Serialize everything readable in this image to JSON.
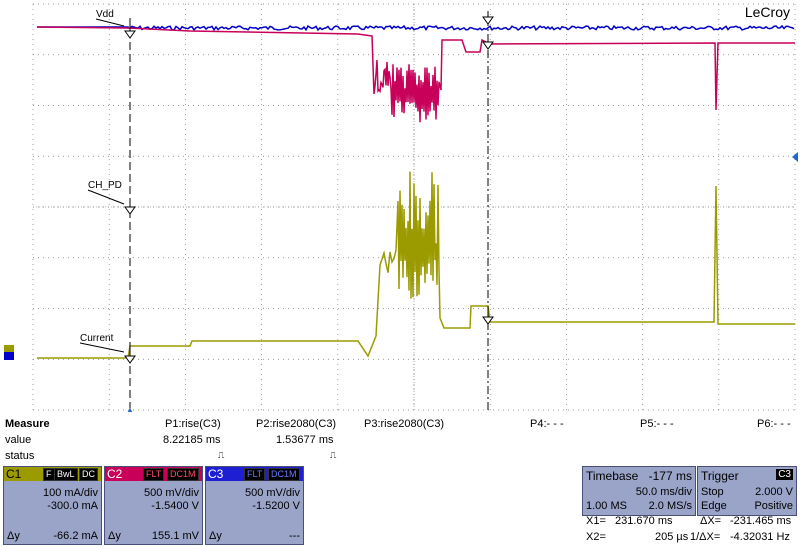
{
  "brand": "LeCroy",
  "traces": {
    "labels": {
      "vdd": "Vdd",
      "ch_pd": "CH_PD",
      "current": "Current"
    },
    "colors": {
      "c1": "#9b9b00",
      "c2": "#c8005a",
      "c3": "#0000c8",
      "grid": "#7a7a7a"
    }
  },
  "measure": {
    "title": "Measure",
    "row_value": "value",
    "row_status": "status",
    "params": [
      {
        "name": "P1:rise(C3)",
        "value": "8.22185 ms",
        "status": "⎍"
      },
      {
        "name": "P2:rise2080(C3)",
        "value": "1.53677 ms",
        "status": "⎍"
      },
      {
        "name": "P3:rise2080(C3)",
        "value": "",
        "status": ""
      },
      {
        "name": "P4:- - -",
        "value": "",
        "status": ""
      },
      {
        "name": "P5:- - -",
        "value": "",
        "status": ""
      },
      {
        "name": "P6:- - -",
        "value": "",
        "status": ""
      }
    ]
  },
  "channels": [
    {
      "id": "C1",
      "tags": [
        "F",
        "BwL",
        "DC"
      ],
      "scale": "100 mA/div",
      "offset": "-300.0 mA",
      "dy_label": "Δy",
      "dy": "-66.2 mA",
      "color": "#9b9b00"
    },
    {
      "id": "C2",
      "tags": [
        "FLT",
        "DC1M"
      ],
      "scale": "500 mV/div",
      "offset": "-1.5400 V",
      "dy_label": "Δy",
      "dy": "155.1 mV",
      "color": "#c8005a"
    },
    {
      "id": "C3",
      "tags": [
        "FLT",
        "DC1M"
      ],
      "scale": "500 mV/div",
      "offset": "-1.5200 V",
      "dy_label": "Δy",
      "dy": "---",
      "color": "#1e1ed2"
    }
  ],
  "timebase": {
    "label": "Timebase",
    "delay": "-177 ms",
    "per_div": "50.0 ms/div",
    "samples": "1.00 MS",
    "rate": "2.0 MS/s"
  },
  "trigger": {
    "label": "Trigger",
    "channel": "C3",
    "mode": "Stop",
    "level": "2.000 V",
    "type": "Edge",
    "slope": "Positive"
  },
  "cursors": {
    "x1_label": "X1=",
    "x1": "231.670 ms",
    "dx_label": "ΔX=",
    "dx": "-231.465 ms",
    "x2_label": "X2=",
    "x2": "205 µs",
    "inv_label": "1/ΔX=",
    "inv": "-4.32031 Hz"
  }
}
